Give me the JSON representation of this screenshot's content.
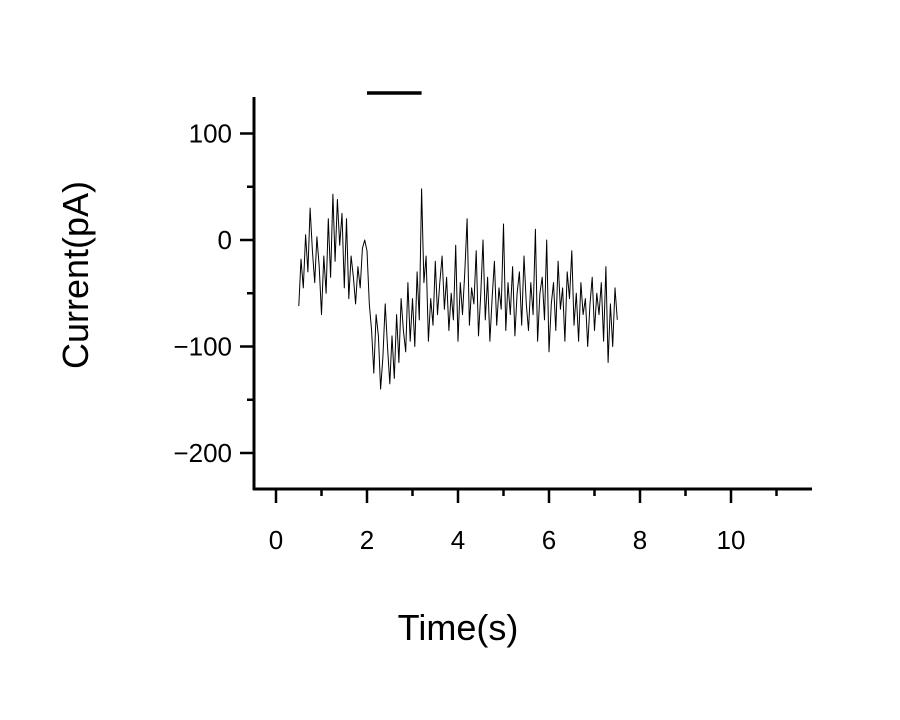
{
  "chart_data": {
    "type": "line",
    "title": "",
    "xlabel": "Time(s)",
    "ylabel": "Current(pA)",
    "xlim": [
      -0.5,
      11.8
    ],
    "ylim": [
      -233,
      135
    ],
    "x_major_ticks": [
      0,
      2,
      4,
      6,
      8,
      10
    ],
    "x_tick_labels": [
      "0",
      "2",
      "4",
      "6",
      "8",
      "10"
    ],
    "x_minor_ticks": [
      1,
      3,
      5,
      7,
      9,
      11
    ],
    "y_major_ticks": [
      100,
      0,
      -100,
      -200
    ],
    "y_tick_labels": [
      "100",
      "0",
      "−100",
      "−200"
    ],
    "y_minor_ticks": [
      50,
      -50,
      -150
    ],
    "grid": false,
    "stimulus_bar": {
      "x_start": 2.0,
      "x_end": 3.2
    },
    "series": [
      {
        "x": [
          0.5,
          0.55,
          0.6,
          0.65,
          0.7,
          0.75,
          0.8,
          0.85,
          0.9,
          0.95,
          1.0,
          1.05,
          1.1,
          1.15,
          1.2,
          1.25,
          1.3,
          1.35,
          1.4,
          1.45,
          1.5,
          1.55,
          1.6,
          1.65,
          1.7,
          1.75,
          1.8,
          1.85,
          1.9,
          1.95,
          2.0,
          2.05,
          2.1,
          2.15,
          2.2,
          2.25,
          2.3,
          2.35,
          2.4,
          2.45,
          2.5,
          2.55,
          2.6,
          2.65,
          2.7,
          2.75,
          2.8,
          2.85,
          2.9,
          2.95,
          3.0,
          3.05,
          3.1,
          3.15,
          3.2,
          3.25,
          3.3,
          3.35,
          3.4,
          3.45,
          3.5,
          3.55,
          3.6,
          3.65,
          3.7,
          3.75,
          3.8,
          3.85,
          3.9,
          3.95,
          4.0,
          4.05,
          4.1,
          4.15,
          4.2,
          4.25,
          4.3,
          4.35,
          4.4,
          4.45,
          4.5,
          4.55,
          4.6,
          4.65,
          4.7,
          4.75,
          4.8,
          4.85,
          4.9,
          4.95,
          5.0,
          5.05,
          5.1,
          5.15,
          5.2,
          5.25,
          5.3,
          5.35,
          5.4,
          5.45,
          5.5,
          5.55,
          5.6,
          5.65,
          5.7,
          5.75,
          5.8,
          5.85,
          5.9,
          5.95,
          6.0,
          6.05,
          6.1,
          6.15,
          6.2,
          6.25,
          6.3,
          6.35,
          6.4,
          6.45,
          6.5,
          6.55,
          6.6,
          6.65,
          6.7,
          6.75,
          6.8,
          6.85,
          6.9,
          6.95,
          7.0,
          7.05,
          7.1,
          7.15,
          7.2,
          7.25,
          7.3,
          7.35,
          7.4,
          7.45,
          7.5
        ],
        "values": [
          -62,
          -18,
          -45,
          5,
          -30,
          30,
          -10,
          -40,
          3,
          -25,
          -70,
          -15,
          -50,
          20,
          -35,
          43,
          -20,
          38,
          -5,
          25,
          -45,
          20,
          -55,
          -15,
          -35,
          -60,
          -25,
          -45,
          -8,
          0,
          -10,
          -60,
          -85,
          -125,
          -70,
          -90,
          -140,
          -110,
          -60,
          -100,
          -135,
          -90,
          -130,
          -70,
          -115,
          -55,
          -85,
          -105,
          -40,
          -95,
          -55,
          -100,
          -30,
          -75,
          48,
          -40,
          -15,
          -95,
          -55,
          -80,
          -20,
          -70,
          -40,
          -15,
          -65,
          -35,
          -85,
          -50,
          -75,
          -5,
          -95,
          -40,
          -70,
          -30,
          20,
          -80,
          -45,
          -60,
          -10,
          -90,
          -50,
          0,
          -75,
          -35,
          -95,
          -55,
          -20,
          -80,
          -45,
          -65,
          15,
          -85,
          -40,
          -70,
          -25,
          -90,
          -50,
          -30,
          -80,
          -15,
          -60,
          -85,
          -40,
          -70,
          10,
          -95,
          -50,
          -35,
          -75,
          0,
          -105,
          -60,
          -40,
          -85,
          -20,
          -65,
          -45,
          -95,
          -30,
          -55,
          -10,
          -80,
          -50,
          -95,
          -40,
          -70,
          -55,
          -100,
          -60,
          -35,
          -85,
          -50,
          -70,
          -40,
          -95,
          -25,
          -115,
          -60,
          -100,
          -45,
          -75
        ]
      }
    ]
  }
}
